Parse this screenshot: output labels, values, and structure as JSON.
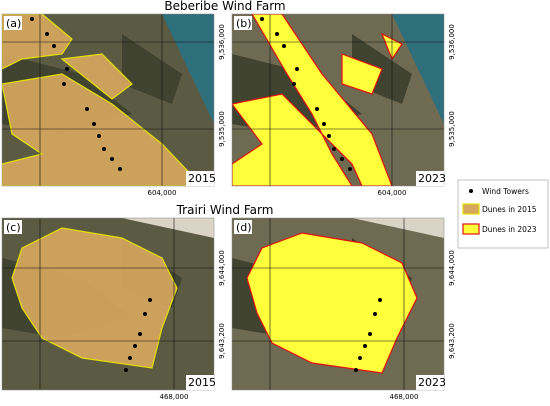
{
  "titles": [
    "Beberibe Wind Farm",
    "Trairi Wind Farm"
  ],
  "panels": [
    {
      "label": "(a)",
      "year": "2015",
      "x_coord": "604,000",
      "y_coords": [
        "9,536,000",
        "9,535,000"
      ]
    },
    {
      "label": "(b)",
      "year": "2023",
      "x_coord": "604,000",
      "y_coords": [
        "9,536,000",
        "9,535,000"
      ]
    },
    {
      "label": "(c)",
      "year": "2015",
      "x_coord": "468,000",
      "y_coords": [
        "9,644,000",
        "9,643,200"
      ]
    },
    {
      "label": "(d)",
      "year": "2023",
      "x_coord": "468,000",
      "y_coords": [
        "9,644,000",
        "9,643,200"
      ]
    }
  ],
  "legend": [
    "Wind Towers",
    "Dunes in 2015",
    "Dunes in 2023"
  ]
}
